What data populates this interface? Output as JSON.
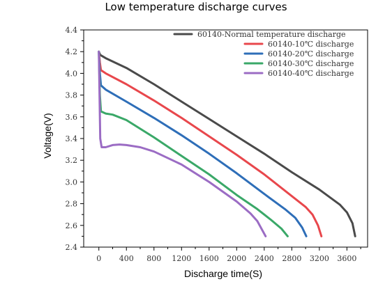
{
  "chart_data": {
    "type": "line",
    "title": "Low temperature discharge curves",
    "xlabel": "Discharge time(S)",
    "ylabel": "Voltage(V)",
    "xlim": [
      -220,
      3900
    ],
    "ylim": [
      2.4,
      4.4
    ],
    "xticks": [
      "0",
      "400",
      "800",
      "1200",
      "1600",
      "2000",
      "2400",
      "2800",
      "3200",
      "3600"
    ],
    "yticks": [
      "2.4",
      "2.6",
      "2.8",
      "3.0",
      "3.2",
      "3.4",
      "3.6",
      "3.8",
      "4.0",
      "4.2",
      "4.4"
    ],
    "grid": false,
    "legend_position": "top-right",
    "series": [
      {
        "name": "60140-Normal temperature discharge",
        "color": "#4a4a4a",
        "x": [
          0,
          20,
          100,
          400,
          800,
          1200,
          1600,
          2000,
          2400,
          2800,
          3200,
          3500,
          3600,
          3680,
          3720
        ],
        "y": [
          4.2,
          4.17,
          4.14,
          4.05,
          3.9,
          3.74,
          3.58,
          3.42,
          3.26,
          3.09,
          2.93,
          2.79,
          2.72,
          2.62,
          2.5
        ]
      },
      {
        "name": "60140-10℃ discharge",
        "color": "#e8474c",
        "x": [
          0,
          15,
          30,
          100,
          400,
          800,
          1200,
          1600,
          2000,
          2400,
          2800,
          3000,
          3100,
          3180,
          3230
        ],
        "y": [
          4.2,
          4.1,
          4.03,
          4.0,
          3.9,
          3.75,
          3.59,
          3.42,
          3.25,
          3.07,
          2.87,
          2.77,
          2.7,
          2.6,
          2.5
        ]
      },
      {
        "name": "60140-20℃ discharge",
        "color": "#2e6eb8",
        "x": [
          0,
          15,
          30,
          100,
          400,
          800,
          1200,
          1600,
          2000,
          2400,
          2700,
          2850,
          2950,
          3010
        ],
        "y": [
          4.2,
          4.0,
          3.89,
          3.85,
          3.74,
          3.59,
          3.43,
          3.26,
          3.08,
          2.89,
          2.75,
          2.67,
          2.58,
          2.5
        ]
      },
      {
        "name": "60140-30℃ discharge",
        "color": "#3aa868",
        "x": [
          0,
          15,
          30,
          100,
          200,
          400,
          800,
          1200,
          1600,
          2000,
          2300,
          2500,
          2650,
          2740
        ],
        "y": [
          4.2,
          3.8,
          3.65,
          3.63,
          3.62,
          3.57,
          3.41,
          3.24,
          3.07,
          2.88,
          2.75,
          2.65,
          2.57,
          2.5
        ]
      },
      {
        "name": "60140-40℃ discharge",
        "color": "#9b6cc4",
        "x": [
          0,
          10,
          20,
          40,
          100,
          200,
          300,
          400,
          600,
          800,
          1200,
          1600,
          2000,
          2200,
          2300,
          2420
        ],
        "y": [
          4.2,
          3.8,
          3.4,
          3.32,
          3.32,
          3.34,
          3.345,
          3.34,
          3.32,
          3.28,
          3.16,
          3.0,
          2.82,
          2.71,
          2.64,
          2.5
        ]
      }
    ]
  }
}
